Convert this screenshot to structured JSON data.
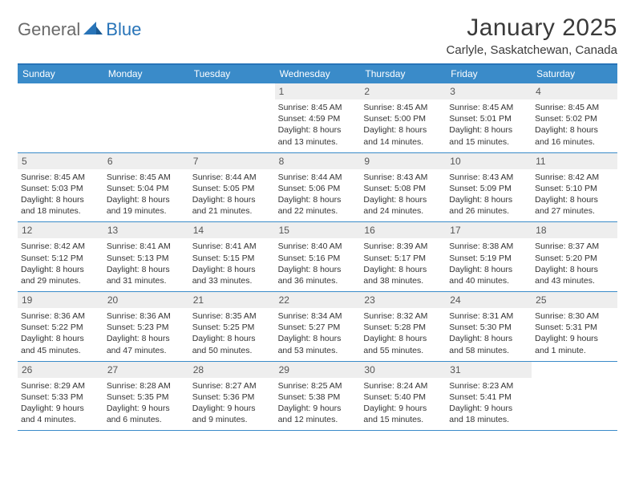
{
  "logo": {
    "general": "General",
    "blue": "Blue"
  },
  "title": "January 2025",
  "location": "Carlyle, Saskatchewan, Canada",
  "colors": {
    "header_bg": "#3a8bc9",
    "border": "#2874b8",
    "daynum_bg": "#eeeeee",
    "text": "#333333"
  },
  "dayNames": [
    "Sunday",
    "Monday",
    "Tuesday",
    "Wednesday",
    "Thursday",
    "Friday",
    "Saturday"
  ],
  "weeks": [
    [
      null,
      null,
      null,
      {
        "n": "1",
        "sr": "8:45 AM",
        "ss": "4:59 PM",
        "dl": "8 hours and 13 minutes."
      },
      {
        "n": "2",
        "sr": "8:45 AM",
        "ss": "5:00 PM",
        "dl": "8 hours and 14 minutes."
      },
      {
        "n": "3",
        "sr": "8:45 AM",
        "ss": "5:01 PM",
        "dl": "8 hours and 15 minutes."
      },
      {
        "n": "4",
        "sr": "8:45 AM",
        "ss": "5:02 PM",
        "dl": "8 hours and 16 minutes."
      }
    ],
    [
      {
        "n": "5",
        "sr": "8:45 AM",
        "ss": "5:03 PM",
        "dl": "8 hours and 18 minutes."
      },
      {
        "n": "6",
        "sr": "8:45 AM",
        "ss": "5:04 PM",
        "dl": "8 hours and 19 minutes."
      },
      {
        "n": "7",
        "sr": "8:44 AM",
        "ss": "5:05 PM",
        "dl": "8 hours and 21 minutes."
      },
      {
        "n": "8",
        "sr": "8:44 AM",
        "ss": "5:06 PM",
        "dl": "8 hours and 22 minutes."
      },
      {
        "n": "9",
        "sr": "8:43 AM",
        "ss": "5:08 PM",
        "dl": "8 hours and 24 minutes."
      },
      {
        "n": "10",
        "sr": "8:43 AM",
        "ss": "5:09 PM",
        "dl": "8 hours and 26 minutes."
      },
      {
        "n": "11",
        "sr": "8:42 AM",
        "ss": "5:10 PM",
        "dl": "8 hours and 27 minutes."
      }
    ],
    [
      {
        "n": "12",
        "sr": "8:42 AM",
        "ss": "5:12 PM",
        "dl": "8 hours and 29 minutes."
      },
      {
        "n": "13",
        "sr": "8:41 AM",
        "ss": "5:13 PM",
        "dl": "8 hours and 31 minutes."
      },
      {
        "n": "14",
        "sr": "8:41 AM",
        "ss": "5:15 PM",
        "dl": "8 hours and 33 minutes."
      },
      {
        "n": "15",
        "sr": "8:40 AM",
        "ss": "5:16 PM",
        "dl": "8 hours and 36 minutes."
      },
      {
        "n": "16",
        "sr": "8:39 AM",
        "ss": "5:17 PM",
        "dl": "8 hours and 38 minutes."
      },
      {
        "n": "17",
        "sr": "8:38 AM",
        "ss": "5:19 PM",
        "dl": "8 hours and 40 minutes."
      },
      {
        "n": "18",
        "sr": "8:37 AM",
        "ss": "5:20 PM",
        "dl": "8 hours and 43 minutes."
      }
    ],
    [
      {
        "n": "19",
        "sr": "8:36 AM",
        "ss": "5:22 PM",
        "dl": "8 hours and 45 minutes."
      },
      {
        "n": "20",
        "sr": "8:36 AM",
        "ss": "5:23 PM",
        "dl": "8 hours and 47 minutes."
      },
      {
        "n": "21",
        "sr": "8:35 AM",
        "ss": "5:25 PM",
        "dl": "8 hours and 50 minutes."
      },
      {
        "n": "22",
        "sr": "8:34 AM",
        "ss": "5:27 PM",
        "dl": "8 hours and 53 minutes."
      },
      {
        "n": "23",
        "sr": "8:32 AM",
        "ss": "5:28 PM",
        "dl": "8 hours and 55 minutes."
      },
      {
        "n": "24",
        "sr": "8:31 AM",
        "ss": "5:30 PM",
        "dl": "8 hours and 58 minutes."
      },
      {
        "n": "25",
        "sr": "8:30 AM",
        "ss": "5:31 PM",
        "dl": "9 hours and 1 minute."
      }
    ],
    [
      {
        "n": "26",
        "sr": "8:29 AM",
        "ss": "5:33 PM",
        "dl": "9 hours and 4 minutes."
      },
      {
        "n": "27",
        "sr": "8:28 AM",
        "ss": "5:35 PM",
        "dl": "9 hours and 6 minutes."
      },
      {
        "n": "28",
        "sr": "8:27 AM",
        "ss": "5:36 PM",
        "dl": "9 hours and 9 minutes."
      },
      {
        "n": "29",
        "sr": "8:25 AM",
        "ss": "5:38 PM",
        "dl": "9 hours and 12 minutes."
      },
      {
        "n": "30",
        "sr": "8:24 AM",
        "ss": "5:40 PM",
        "dl": "9 hours and 15 minutes."
      },
      {
        "n": "31",
        "sr": "8:23 AM",
        "ss": "5:41 PM",
        "dl": "9 hours and 18 minutes."
      },
      null
    ]
  ],
  "labels": {
    "sunrise": "Sunrise:",
    "sunset": "Sunset:",
    "daylight": "Daylight:"
  }
}
